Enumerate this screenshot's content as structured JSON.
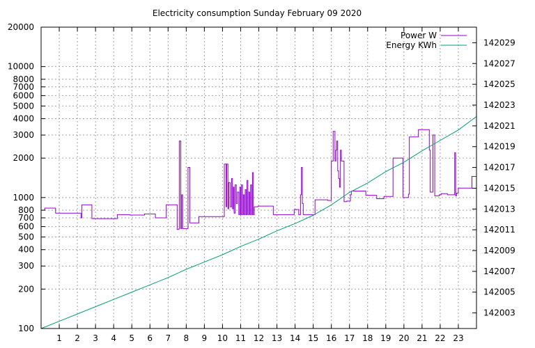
{
  "chart_data": {
    "type": "line",
    "title": "Electricity consumption Sunday February 09 2020",
    "xlabel": "",
    "ylabel": "",
    "xlim": [
      0,
      24
    ],
    "ylim": [
      100,
      20000
    ],
    "yscale": "log",
    "y2lim": [
      142001.5,
      142030.5
    ],
    "grid": true,
    "legend": "top-right",
    "x_ticks": [
      1,
      2,
      3,
      4,
      5,
      6,
      7,
      8,
      9,
      10,
      11,
      12,
      13,
      14,
      15,
      16,
      17,
      18,
      19,
      20,
      21,
      22,
      23
    ],
    "y_ticks": [
      100,
      200,
      300,
      400,
      500,
      600,
      700,
      800,
      1000,
      2000,
      3000,
      4000,
      5000,
      6000,
      7000,
      8000,
      10000,
      20000
    ],
    "y2_ticks": [
      142003,
      142005,
      142007,
      142009,
      142011,
      142013,
      142015,
      142017,
      142019,
      142021,
      142023,
      142025,
      142027,
      142029
    ],
    "series": [
      {
        "name": "Power W",
        "axis": "left",
        "color": "#9400d3",
        "step": true,
        "x": [
          0,
          0.2,
          0.8,
          2.2,
          2.25,
          2.3,
          2.8,
          2.85,
          4.2,
          4.9,
          5.7,
          6.3,
          6.9,
          7.5,
          7.6,
          7.62,
          7.7,
          7.75,
          7.8,
          7.9,
          8.1,
          8.2,
          8.25,
          8.3,
          8.6,
          8.7,
          8.75,
          9.05,
          9.1,
          9.25,
          10.1,
          10.2,
          10.23,
          10.3,
          10.34,
          10.42,
          10.5,
          10.55,
          10.6,
          10.64,
          10.7,
          10.76,
          10.82,
          10.9,
          10.95,
          11.0,
          11.05,
          11.1,
          11.15,
          11.2,
          11.25,
          11.3,
          11.35,
          11.4,
          11.45,
          11.5,
          11.55,
          11.6,
          11.65,
          11.7,
          11.75,
          11.8,
          11.85,
          11.9,
          11.95,
          12.1,
          12.8,
          13.4,
          13.95,
          14.2,
          14.25,
          14.3,
          14.35,
          14.4,
          14.45,
          14.55,
          14.75,
          15.1,
          15.8,
          16.0,
          16.1,
          16.2,
          16.25,
          16.3,
          16.35,
          16.4,
          16.45,
          16.5,
          16.55,
          16.6,
          16.7,
          16.75,
          16.85,
          17.05,
          17.1,
          17.9,
          18.5,
          18.9,
          19.4,
          19.95,
          20.2,
          20.25,
          20.3,
          20.8,
          21.4,
          21.45,
          21.5,
          21.55,
          21.6,
          21.7,
          21.95,
          22.0,
          22.05,
          22.4,
          22.8,
          22.85,
          22.9,
          23.0,
          23.3,
          23.75,
          24.0
        ],
        "y": [
          800,
          830,
          760,
          700,
          880,
          880,
          690,
          690,
          740,
          735,
          750,
          700,
          880,
          570,
          580,
          2700,
          580,
          1050,
          580,
          580,
          1700,
          640,
          640,
          640,
          640,
          715,
          715,
          715,
          715,
          715,
          1800,
          850,
          1800,
          820,
          1300,
          850,
          1400,
          820,
          1200,
          760,
          1250,
          900,
          1100,
          740,
          1200,
          740,
          1250,
          740,
          1050,
          740,
          1150,
          740,
          1350,
          740,
          1100,
          740,
          1250,
          740,
          1550,
          740,
          850,
          850,
          850,
          850,
          860,
          860,
          740,
          740,
          810,
          740,
          740,
          1050,
          1700,
          900,
          740,
          740,
          740,
          960,
          950,
          1900,
          3200,
          1900,
          2300,
          2700,
          1600,
          1400,
          1200,
          2300,
          1900,
          1900,
          930,
          930,
          940,
          1050,
          1120,
          1040,
          980,
          1020,
          2000,
          1000,
          1000,
          1060,
          2900,
          3300,
          2300,
          1100,
          1100,
          1100,
          3000,
          1030,
          1050,
          1050,
          1070,
          1050,
          2200,
          1030,
          1080,
          1180,
          1180,
          1450,
          1450
        ]
      },
      {
        "name": "Energy KWh",
        "axis": "right",
        "color": "#009e73",
        "step": false,
        "x": [
          0,
          1,
          2,
          3,
          4,
          5,
          6,
          7,
          8,
          9,
          10,
          11,
          12,
          13,
          14,
          15,
          16,
          17,
          18,
          19,
          20,
          21,
          22,
          23,
          24
        ],
        "y": [
          142001.5,
          142002.2,
          142002.9,
          142003.6,
          142004.3,
          142005.0,
          142005.7,
          142006.4,
          142007.2,
          142007.9,
          142008.6,
          142009.4,
          142010.1,
          142010.9,
          142011.6,
          142012.4,
          142013.4,
          142014.6,
          142015.5,
          142016.6,
          142017.5,
          142018.6,
          142019.6,
          142020.6,
          142021.9
        ]
      }
    ]
  }
}
